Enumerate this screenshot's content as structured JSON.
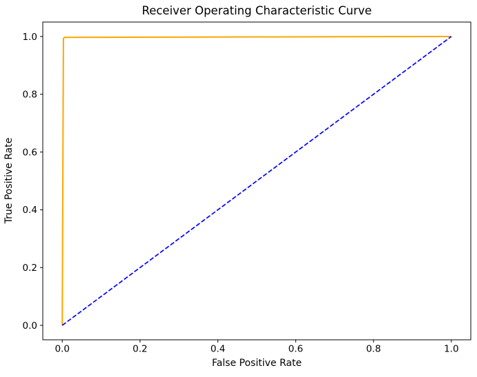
{
  "figure": {
    "background_color": "#ffffff",
    "spine_color": "#000000",
    "text_color": "#000000"
  },
  "chart_data": {
    "type": "line",
    "title": "Receiver Operating Characteristic Curve",
    "xlabel": "False Positive Rate",
    "ylabel": "True Positive Rate",
    "xlim": [
      -0.05,
      1.05
    ],
    "ylim": [
      -0.05,
      1.05
    ],
    "xticks": [
      0.0,
      0.2,
      0.4,
      0.6,
      0.8,
      1.0
    ],
    "yticks": [
      0.0,
      0.2,
      0.4,
      0.6,
      0.8,
      1.0
    ],
    "xtick_labels": [
      "0.0",
      "0.2",
      "0.4",
      "0.6",
      "0.8",
      "1.0"
    ],
    "ytick_labels": [
      "0.0",
      "0.2",
      "0.4",
      "0.6",
      "0.8",
      "1.0"
    ],
    "grid": false,
    "legend": "none",
    "series": [
      {
        "id": "roc-curve-line",
        "name": "ROC curve",
        "color": "#FFA500",
        "style": "solid",
        "linewidth": 2,
        "points": [
          [
            0.0,
            0.0
          ],
          [
            0.003,
            0.993
          ],
          [
            0.006,
            0.997
          ],
          [
            1.0,
            1.0
          ]
        ]
      },
      {
        "id": "chance-diagonal-line",
        "name": "Chance diagonal",
        "color": "#0000FF",
        "style": "dashed",
        "linewidth": 1.7,
        "points": [
          [
            0.0,
            0.0
          ],
          [
            1.0,
            1.0
          ]
        ]
      }
    ]
  }
}
